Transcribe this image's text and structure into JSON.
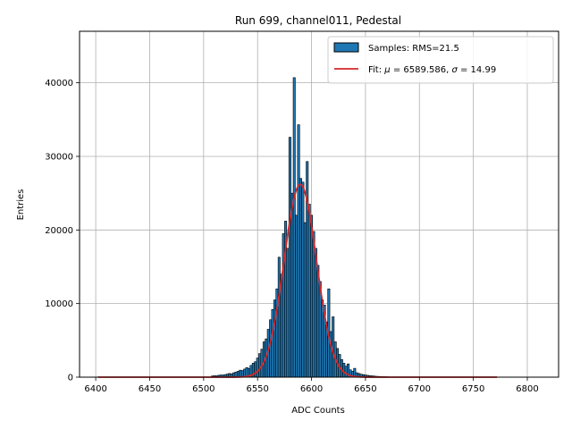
{
  "chart_data": {
    "type": "bar",
    "title": "Run 699, channel011, Pedestal",
    "xlabel": "ADC Counts",
    "ylabel": "Entries",
    "xlim": [
      6385,
      6829
    ],
    "ylim": [
      0,
      47000
    ],
    "xticks": [
      6400,
      6450,
      6500,
      6550,
      6600,
      6650,
      6700,
      6750,
      6800
    ],
    "yticks": [
      0,
      10000,
      20000,
      30000,
      40000
    ],
    "grid": true,
    "legend_position": "top-right",
    "legend": {
      "samples_label": "Samples: RMS=21.5",
      "fit_label_prefix": "Fit: ",
      "fit_mu_symbol": "μ",
      "fit_mu_text": " = 6589.586, ",
      "fit_sigma_symbol": "σ",
      "fit_sigma_text": " = 14.99"
    },
    "histogram": {
      "name": "Samples",
      "color": "#1f77b4",
      "edgecolor": "#000000",
      "bins": [
        [
          6508,
          150
        ],
        [
          6510,
          200
        ],
        [
          6512,
          180
        ],
        [
          6514,
          250
        ],
        [
          6516,
          300
        ],
        [
          6518,
          280
        ],
        [
          6520,
          350
        ],
        [
          6522,
          420
        ],
        [
          6524,
          500
        ],
        [
          6526,
          450
        ],
        [
          6528,
          600
        ],
        [
          6530,
          700
        ],
        [
          6532,
          800
        ],
        [
          6534,
          950
        ],
        [
          6536,
          900
        ],
        [
          6538,
          1100
        ],
        [
          6540,
          1300
        ],
        [
          6542,
          1200
        ],
        [
          6544,
          1600
        ],
        [
          6546,
          1900
        ],
        [
          6548,
          2100
        ],
        [
          6550,
          2600
        ],
        [
          6552,
          3200
        ],
        [
          6554,
          3800
        ],
        [
          6556,
          4800
        ],
        [
          6558,
          5200
        ],
        [
          6560,
          6500
        ],
        [
          6562,
          7800
        ],
        [
          6564,
          9200
        ],
        [
          6566,
          10500
        ],
        [
          6568,
          12000
        ],
        [
          6570,
          16300
        ],
        [
          6572,
          14000
        ],
        [
          6574,
          19500
        ],
        [
          6576,
          21200
        ],
        [
          6578,
          17500
        ],
        [
          6580,
          32600
        ],
        [
          6582,
          25000
        ],
        [
          6584,
          40700
        ],
        [
          6586,
          22000
        ],
        [
          6588,
          34300
        ],
        [
          6590,
          27000
        ],
        [
          6592,
          26500
        ],
        [
          6594,
          21000
        ],
        [
          6596,
          29300
        ],
        [
          6598,
          23500
        ],
        [
          6600,
          22000
        ],
        [
          6602,
          19800
        ],
        [
          6604,
          17500
        ],
        [
          6606,
          15200
        ],
        [
          6608,
          13000
        ],
        [
          6610,
          10500
        ],
        [
          6612,
          9800
        ],
        [
          6614,
          7500
        ],
        [
          6616,
          12000
        ],
        [
          6618,
          6200
        ],
        [
          6620,
          8200
        ],
        [
          6622,
          4800
        ],
        [
          6624,
          3900
        ],
        [
          6626,
          3100
        ],
        [
          6628,
          2400
        ],
        [
          6630,
          1900
        ],
        [
          6632,
          1500
        ],
        [
          6634,
          1800
        ],
        [
          6636,
          1000
        ],
        [
          6638,
          800
        ],
        [
          6640,
          1200
        ],
        [
          6642,
          600
        ],
        [
          6644,
          500
        ],
        [
          6646,
          400
        ],
        [
          6648,
          350
        ],
        [
          6650,
          300
        ],
        [
          6652,
          250
        ],
        [
          6654,
          200
        ],
        [
          6656,
          180
        ],
        [
          6658,
          150
        ],
        [
          6660,
          120
        ],
        [
          6662,
          100
        ],
        [
          6664,
          90
        ],
        [
          6666,
          80
        ],
        [
          6668,
          70
        ],
        [
          6670,
          60
        ]
      ]
    },
    "fit": {
      "name": "Fit",
      "color": "#d62728",
      "mu": 6589.586,
      "sigma": 14.99,
      "amplitude": 26200,
      "x_range": [
        6402,
        6772
      ]
    }
  }
}
